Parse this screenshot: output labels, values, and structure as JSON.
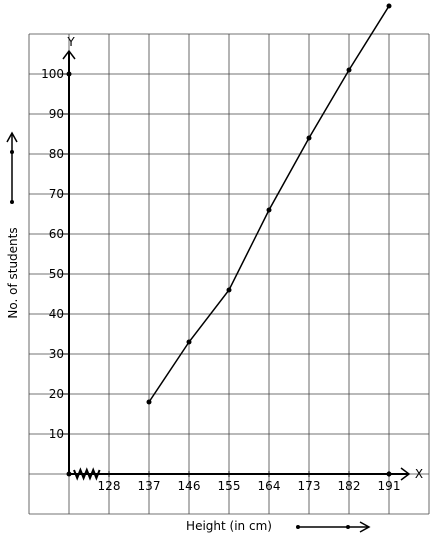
{
  "chart_data": {
    "type": "line",
    "xlabel": "Height (in cm)",
    "ylabel": "No. of students",
    "x_axis_letter": "X",
    "y_axis_letter": "Y",
    "x_ticks": [
      "128",
      "137",
      "146",
      "155",
      "164",
      "173",
      "182",
      "191"
    ],
    "y_ticks": [
      "10",
      "20",
      "30",
      "40",
      "50",
      "60",
      "70",
      "80",
      "90",
      "100"
    ],
    "xlim": [
      119,
      200
    ],
    "ylim": [
      -10,
      110
    ],
    "grid": true,
    "series": [
      {
        "points": [
          {
            "x": 137,
            "y": 18
          },
          {
            "x": 146,
            "y": 33
          },
          {
            "x": 155,
            "y": 46
          },
          {
            "x": 164,
            "y": 66
          },
          {
            "x": 173,
            "y": 84
          },
          {
            "x": 182,
            "y": 101
          },
          {
            "x": 191,
            "y": 117
          }
        ]
      }
    ],
    "axis_markers": [
      {
        "x": 119,
        "y": 0
      },
      {
        "x": 119,
        "y": 100
      },
      {
        "x": 191,
        "y": 0
      }
    ]
  }
}
